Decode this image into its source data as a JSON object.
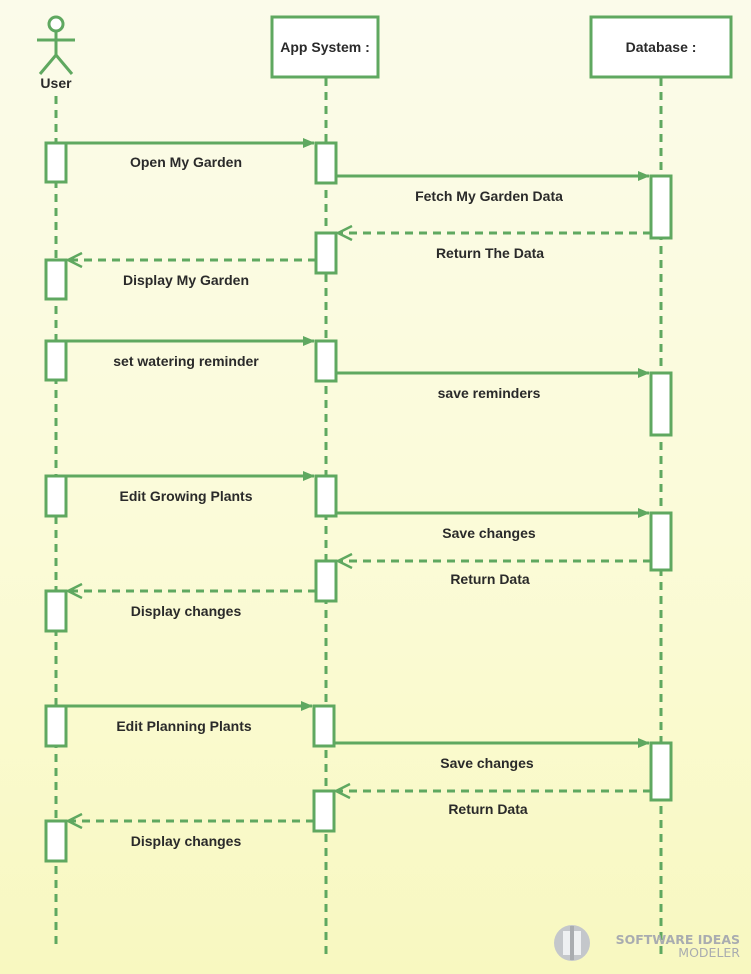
{
  "colors": {
    "line": "#5fa860",
    "box_fill": "#ffffff",
    "text": "#2a2a2a",
    "watermark": "#a9acb0"
  },
  "actor": {
    "name": "User"
  },
  "lifelines": [
    {
      "name": "App System :"
    },
    {
      "name": "Database :"
    }
  ],
  "messages": [
    {
      "label": "Open My Garden",
      "from": "User",
      "to": "App System :",
      "kind": "sync"
    },
    {
      "label": "Fetch My Garden Data",
      "from": "App System :",
      "to": "Database :",
      "kind": "sync"
    },
    {
      "label": "Return The Data",
      "from": "Database :",
      "to": "App System :",
      "kind": "return"
    },
    {
      "label": "Display My Garden",
      "from": "App System :",
      "to": "User",
      "kind": "return"
    },
    {
      "label": "set watering reminder",
      "from": "User",
      "to": "App System :",
      "kind": "sync"
    },
    {
      "label": "save reminders",
      "from": "App System :",
      "to": "Database :",
      "kind": "sync"
    },
    {
      "label": "Edit Growing Plants",
      "from": "User",
      "to": "App System :",
      "kind": "sync"
    },
    {
      "label": "Save changes",
      "from": "App System :",
      "to": "Database :",
      "kind": "sync"
    },
    {
      "label": "Return Data",
      "from": "Database :",
      "to": "App System :",
      "kind": "return"
    },
    {
      "label": "Display changes",
      "from": "App System :",
      "to": "User",
      "kind": "return"
    },
    {
      "label": "Edit Planning Plants",
      "from": "User",
      "to": "App System :",
      "kind": "sync"
    },
    {
      "label": "Save changes",
      "from": "App System :",
      "to": "Database :",
      "kind": "sync"
    },
    {
      "label": "Return Data",
      "from": "Database :",
      "to": "App System :",
      "kind": "return"
    },
    {
      "label": "Display changes",
      "from": "App System :",
      "to": "User",
      "kind": "return"
    }
  ],
  "watermark": {
    "line1": "SOFTWARE IDEAS",
    "line2": "MODELER"
  }
}
